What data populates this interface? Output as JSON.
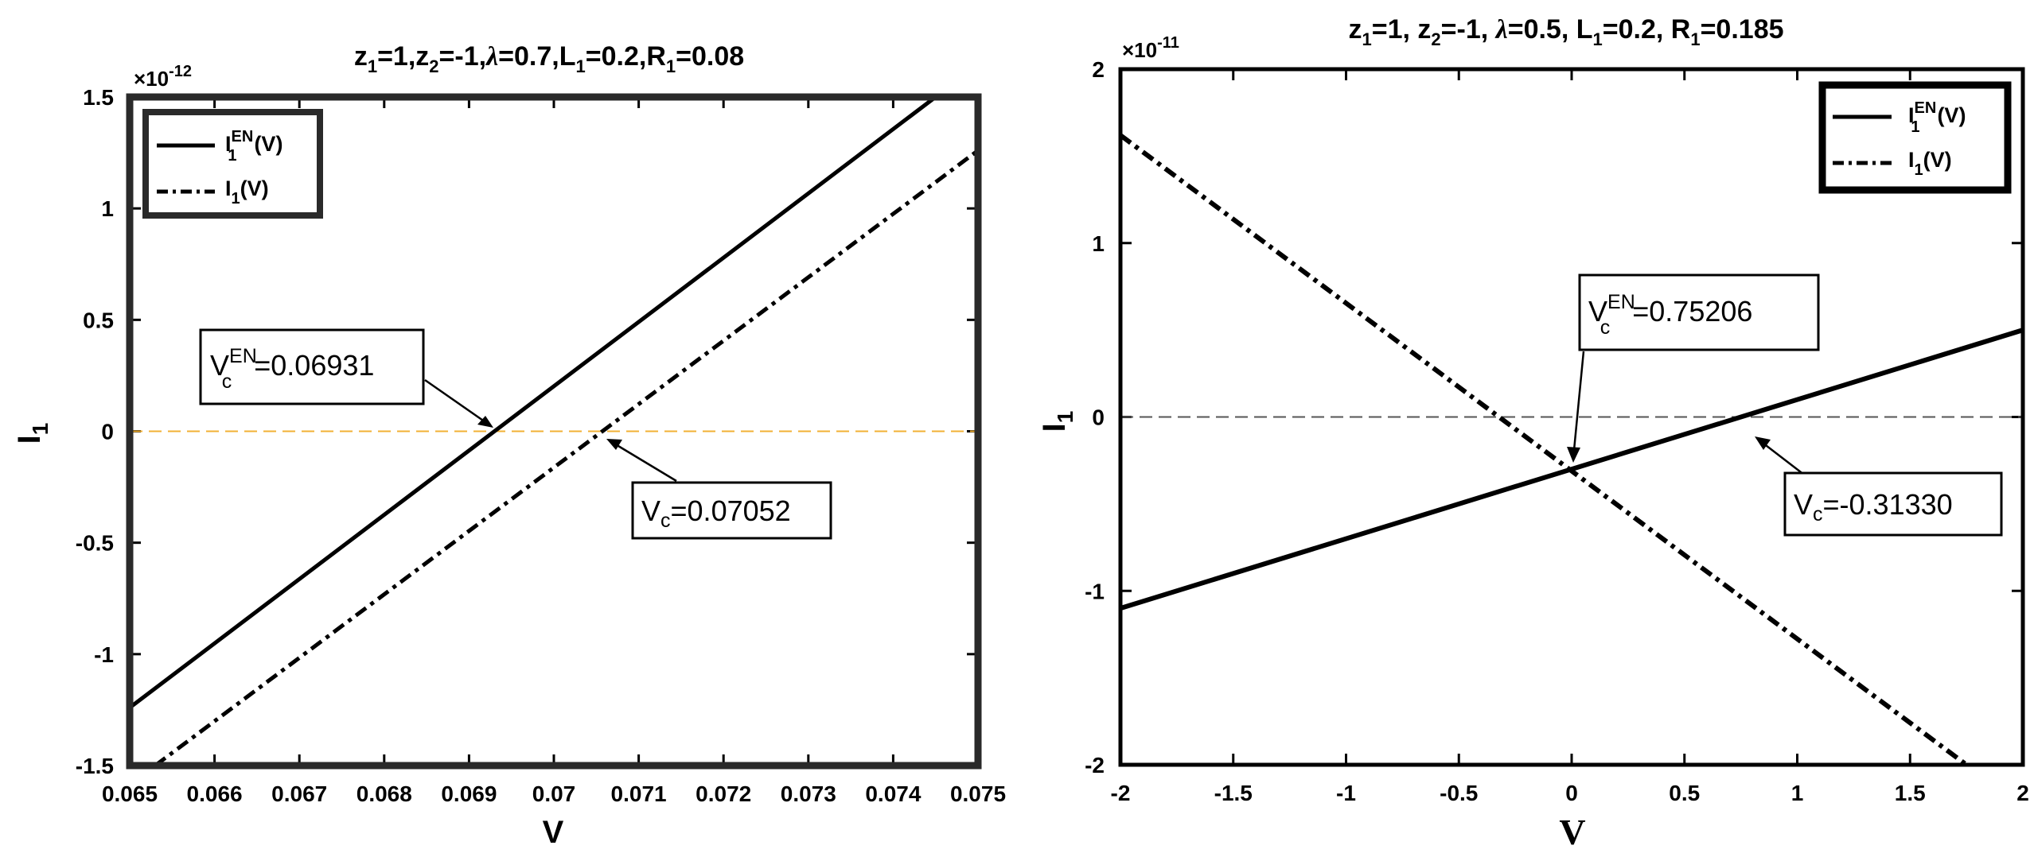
{
  "chart_data": [
    {
      "type": "line",
      "title": "z1=1,z2=-1,λ=0.7,L1=0.2,R1=0.08",
      "xlabel": "V",
      "ylabel": "I1",
      "y_exponent": "×10⁻¹²",
      "xlim": [
        0.065,
        0.075
      ],
      "ylim": [
        -1.5,
        1.5
      ],
      "xticks": [
        "0.065",
        "0.066",
        "0.067",
        "0.068",
        "0.069",
        "0.07",
        "0.071",
        "0.072",
        "0.073",
        "0.074",
        "0.075"
      ],
      "yticks": [
        "-1.5",
        "-1",
        "-0.5",
        "0",
        "0.5",
        "1",
        "1.5"
      ],
      "grid": false,
      "legend_position": "top-left",
      "zero_line_color": "#f2b134",
      "series": [
        {
          "name": "I1EN(V)",
          "style": "solid",
          "x": [
            0.065,
            0.0745
          ],
          "y": [
            -1.24,
            1.5
          ]
        },
        {
          "name": "I1(V)",
          "style": "dashdot",
          "x": [
            0.0653,
            0.075
          ],
          "y": [
            -1.5,
            1.26
          ]
        }
      ],
      "annotations": [
        {
          "label": "VcEN=0.06931",
          "x": 0.06931,
          "y": 0
        },
        {
          "label": "Vc=0.07052",
          "x": 0.07052,
          "y": 0
        }
      ]
    },
    {
      "type": "line",
      "title": "z1=1, z2=-1, λ=0.5, L1=0.2, R1=0.185",
      "xlabel": "V",
      "ylabel": "I1",
      "y_exponent": "×10⁻¹¹",
      "xlim": [
        -2,
        2
      ],
      "ylim": [
        -2,
        2
      ],
      "xticks": [
        "-2",
        "-1.5",
        "-1",
        "-0.5",
        "0",
        "0.5",
        "1",
        "1.5",
        "2"
      ],
      "yticks": [
        "-2",
        "-1",
        "0",
        "1",
        "2"
      ],
      "grid": false,
      "legend_position": "top-right",
      "zero_line_color": "#555555",
      "series": [
        {
          "name": "I1EN(V)",
          "style": "solid",
          "x": [
            -2,
            2
          ],
          "y": [
            -1.1,
            0.5
          ]
        },
        {
          "name": "I1(V)",
          "style": "dashdot",
          "x": [
            -2,
            1.75
          ],
          "y": [
            1.62,
            -2
          ]
        }
      ],
      "annotations": [
        {
          "label": "VcEN=0.75206",
          "x": 0,
          "y": -0.3
        },
        {
          "label": "Vc=-0.31330",
          "x": 0.78,
          "y": 0
        }
      ]
    }
  ],
  "labels": {
    "left": {
      "title": {
        "z1": "z",
        "s1": "1",
        "eq1": "=1,",
        "z2": "z",
        "s2": "2",
        "eq2": "=-1,",
        "lam": "λ",
        "rest1": "=0.7,L",
        "s3": "1",
        "rest2": "=0.2,R",
        "s4": "1",
        "rest3": "=0.08"
      },
      "exp_base": "×10",
      "exp_pow": "-12",
      "ylabel_main": "I",
      "ylabel_sub": "1",
      "xlabel": "V",
      "legend": {
        "l1_main": "I",
        "l1_sup": "EN",
        "l1_sub": "1",
        "l1_tail": "(V)",
        "l2_main": "I",
        "l2_sub": "1",
        "l2_tail": "(V)"
      },
      "ann1": {
        "main": "V",
        "sup": "EN",
        "sub": "c",
        "tail": "=0.06931"
      },
      "ann2": {
        "main": "V",
        "sub": "c",
        "tail": "=0.07052"
      }
    },
    "right": {
      "title": {
        "z1": "z",
        "s1": "1",
        "eq1": "=1, ",
        "z2": "z",
        "s2": "2",
        "eq2": "=-1, ",
        "lam": "λ",
        "rest1": "=0.5, L",
        "s3": "1",
        "rest2": "=0.2, R",
        "s4": "1",
        "rest3": "=0.185"
      },
      "exp_base": "×10",
      "exp_pow": "-11",
      "ylabel_main": "I",
      "ylabel_sub": "1",
      "xlabel": "V",
      "legend": {
        "l1_main": "I",
        "l1_sup": "EN",
        "l1_sub": "1",
        "l1_tail": "(V)",
        "l2_main": "I",
        "l2_sub": "1",
        "l2_tail": "(V)"
      },
      "ann1": {
        "main": "V",
        "sup": "EN",
        "sub": "c",
        "tail": "=0.75206"
      },
      "ann2": {
        "main": "V",
        "sub": "c",
        "tail": "=-0.31330"
      }
    }
  }
}
